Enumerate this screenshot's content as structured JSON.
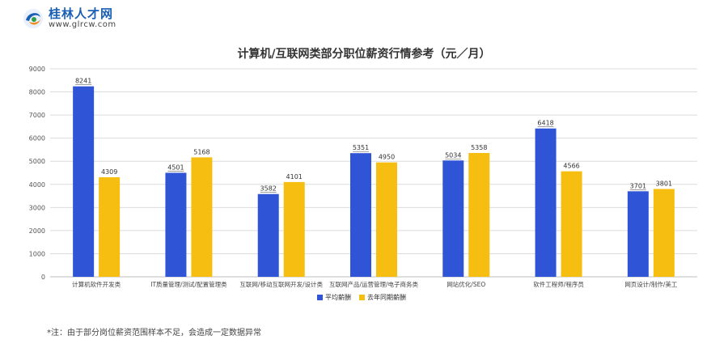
{
  "header": {
    "logo_name": "桂林人才网",
    "logo_url": "www.glrcw.com"
  },
  "chart_data": {
    "type": "bar",
    "title": "计算机/互联网类部分职位薪资行情参考（元／月）",
    "categories": [
      "计算机软件开发类",
      "IT质量管理/测试/配置管理类",
      "互联网/移动互联网开发/设计类",
      "互联网产品/运营管理/电子商务类",
      "网站优化/SEO",
      "软件工程师/程序员",
      "网页设计/制作/美工"
    ],
    "series": [
      {
        "name": "平均薪酬",
        "color": "#2f54d6",
        "values": [
          8241,
          4501,
          3582,
          5351,
          5034,
          6418,
          3701
        ]
      },
      {
        "name": "去年同期薪酬",
        "color": "#f5be10",
        "values": [
          4309,
          5168,
          4101,
          4950,
          5358,
          4566,
          3801
        ]
      }
    ],
    "ylim": [
      0,
      9000
    ],
    "yticks": [
      0,
      1000,
      2000,
      3000,
      4000,
      5000,
      6000,
      7000,
      8000,
      9000
    ],
    "grid": true,
    "legend": "bottom"
  },
  "footnote": "*注：由于部分岗位薪资范围样本不足，会造成一定数据异常"
}
